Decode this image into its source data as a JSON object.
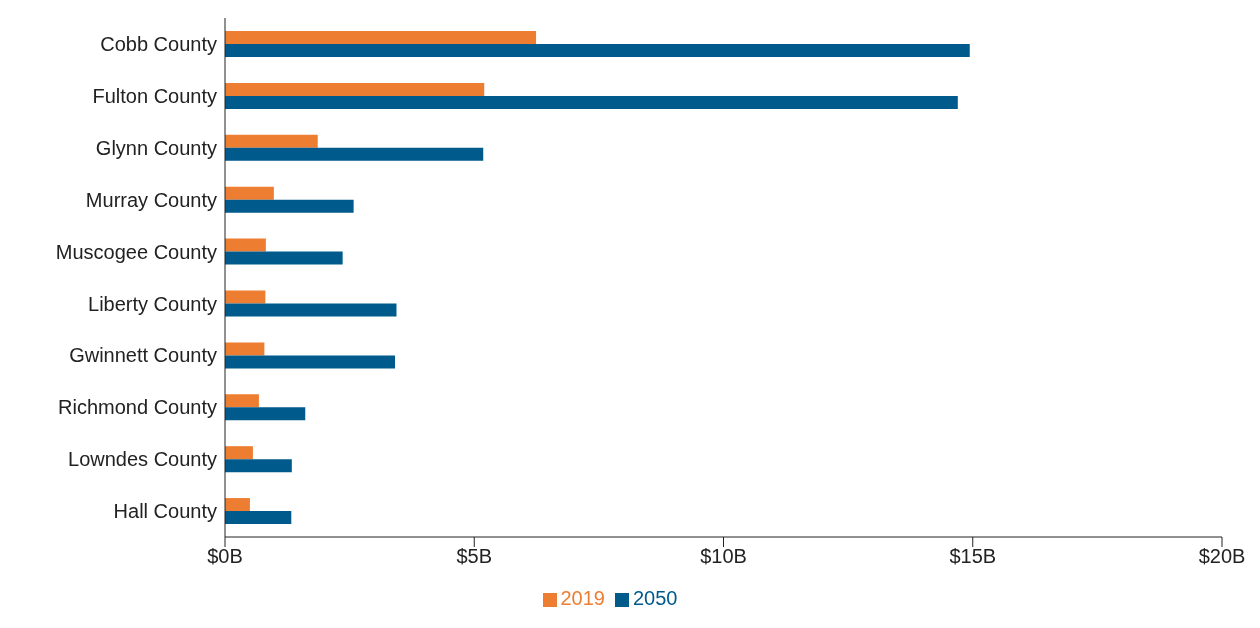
{
  "chart_data": {
    "type": "bar",
    "orientation": "horizontal",
    "categories": [
      "Cobb County",
      "Fulton County",
      "Glynn County",
      "Murray County",
      "Muscogee County",
      "Liberty County",
      "Gwinnett County",
      "Richmond County",
      "Lowndes County",
      "Hall County"
    ],
    "series": [
      {
        "name": "2019",
        "color": "#ed7d31",
        "values": [
          6.24,
          5.2,
          1.86,
          0.98,
          0.82,
          0.81,
          0.79,
          0.68,
          0.56,
          0.5
        ]
      },
      {
        "name": "2050",
        "color": "#005a8c",
        "values": [
          14.94,
          14.7,
          5.18,
          2.58,
          2.36,
          3.44,
          3.41,
          1.61,
          1.34,
          1.33
        ]
      }
    ],
    "xlim": [
      0,
      20
    ],
    "xticks": [
      {
        "value": 0,
        "label": "$0B"
      },
      {
        "value": 5,
        "label": "$5B"
      },
      {
        "value": 10,
        "label": "$10B"
      },
      {
        "value": 15,
        "label": "$15B"
      },
      {
        "value": 20,
        "label": "$20B"
      }
    ],
    "grid": false,
    "legend": "bottom"
  }
}
